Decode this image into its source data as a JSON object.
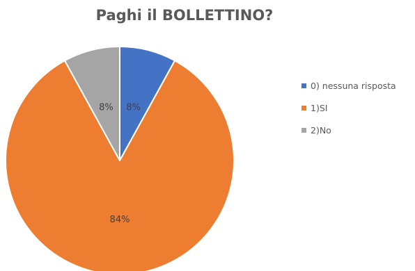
{
  "chart_data": {
    "type": "pie",
    "title": "Paghi il BOLLETTINO?",
    "categories": [
      "0) nessuna risposta",
      "1)SI",
      "2)No"
    ],
    "values": [
      8,
      84,
      8
    ],
    "data_labels": [
      "8%",
      "84%",
      "8%"
    ],
    "colors": [
      "#4472C4",
      "#ED7D31",
      "#A5A5A5"
    ],
    "legend_position": "right",
    "start_angle": "top, clockwise"
  }
}
